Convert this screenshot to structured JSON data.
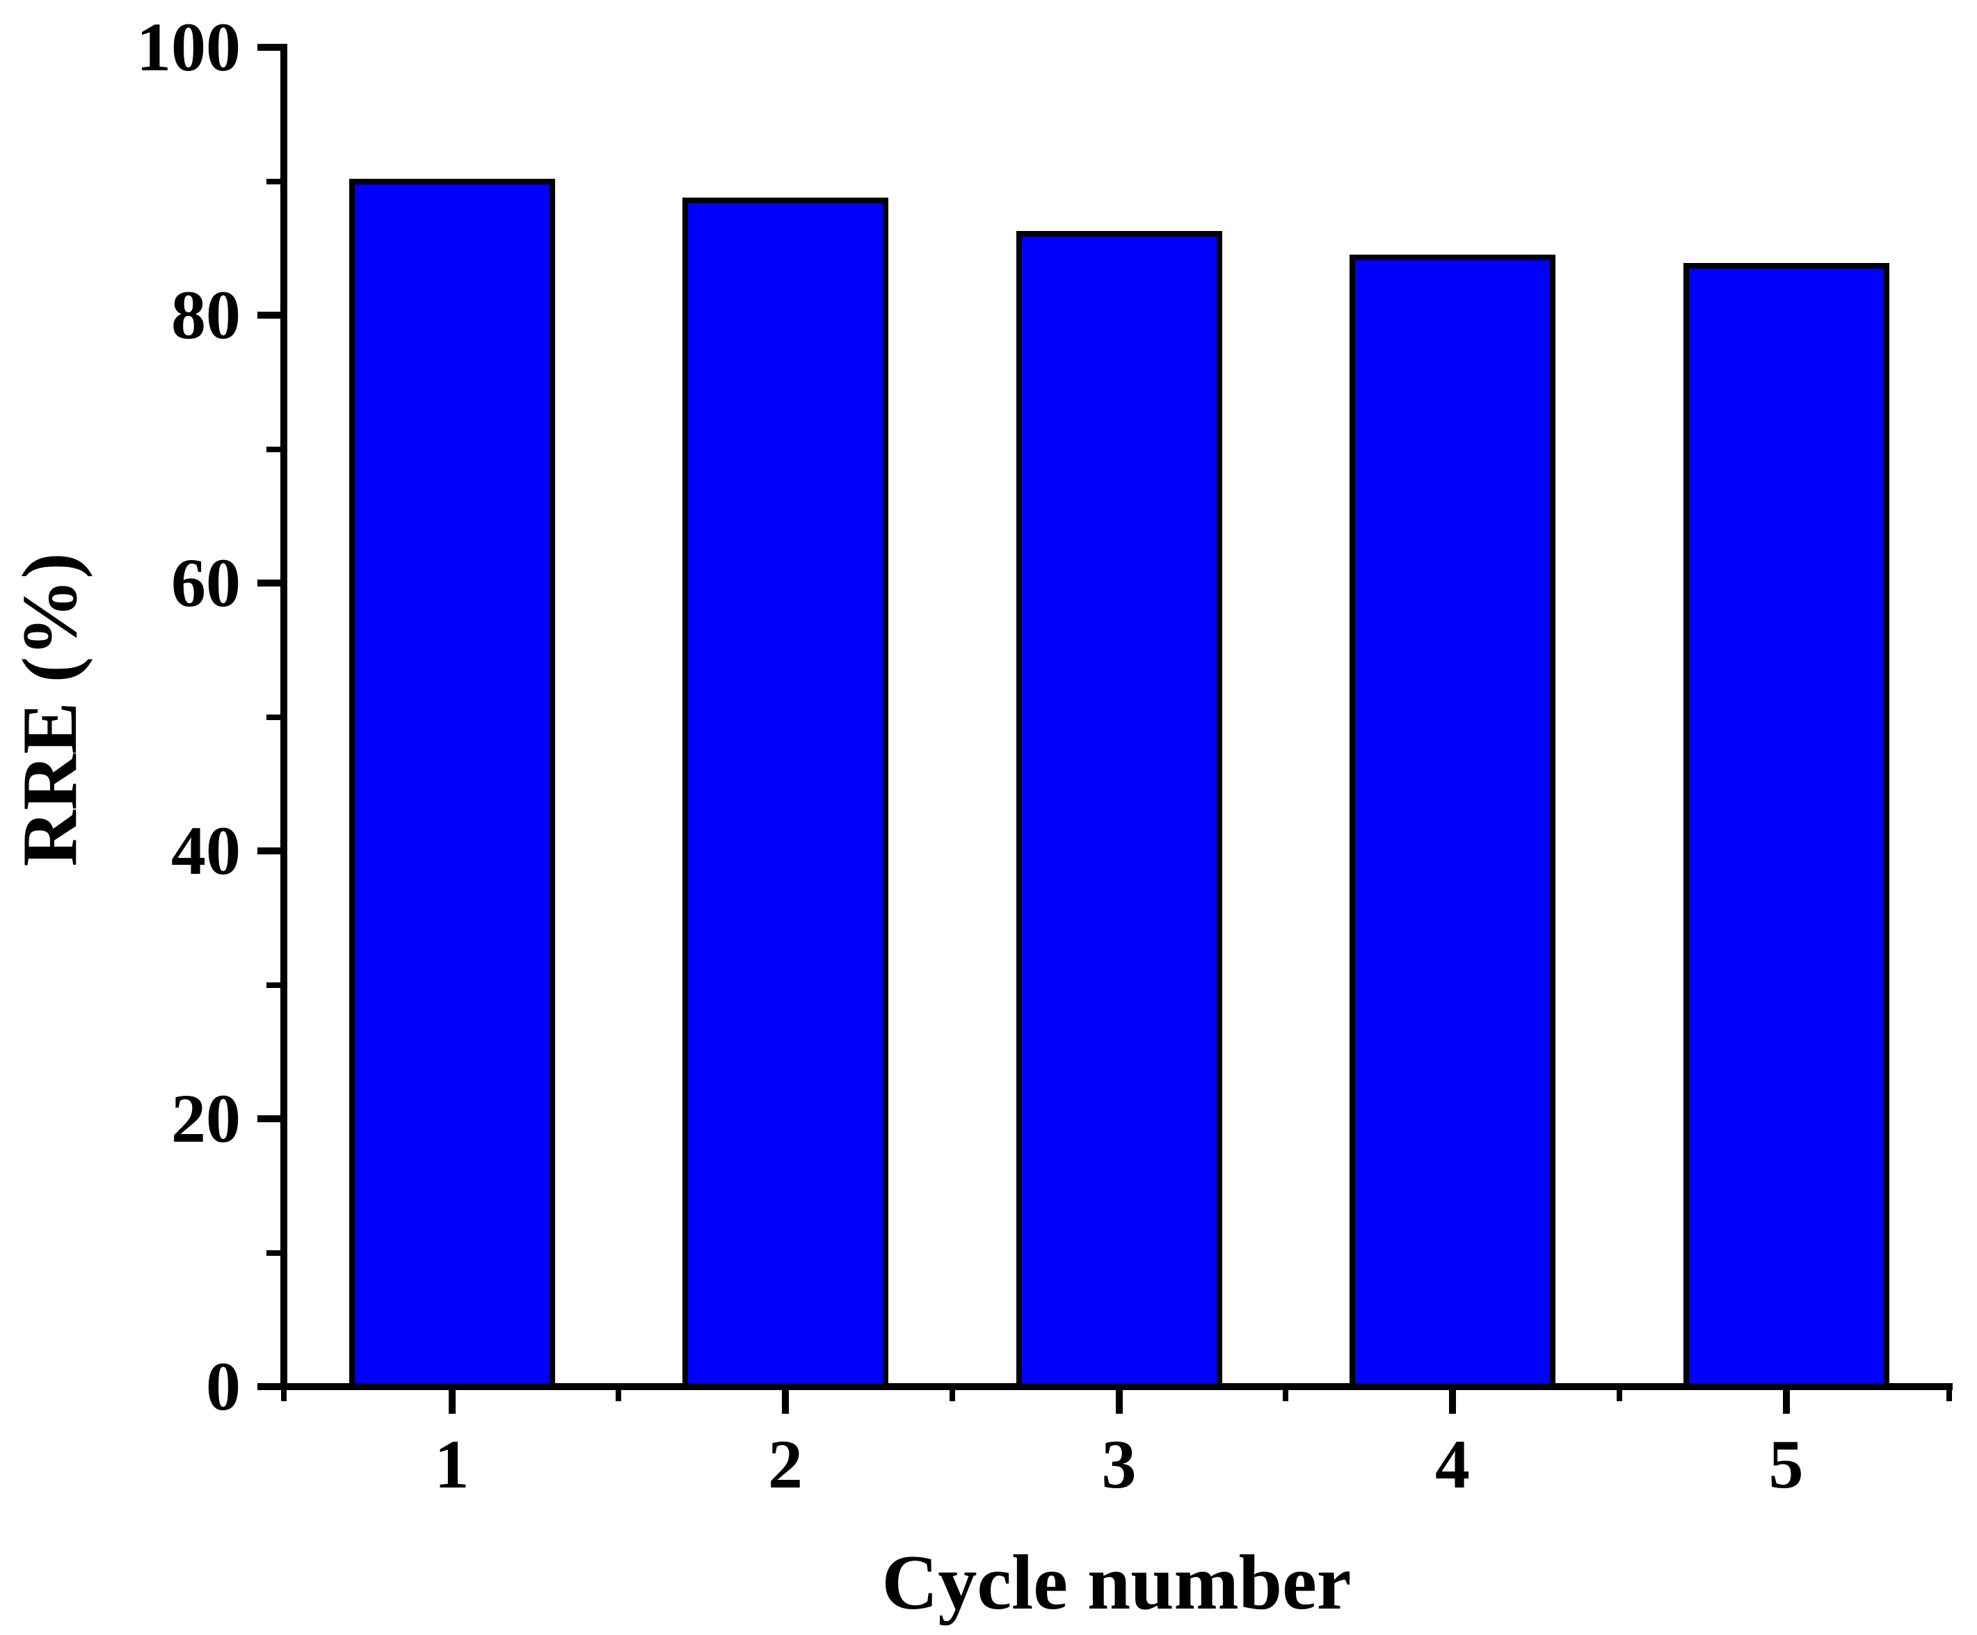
{
  "chart_data": {
    "type": "bar",
    "title": "",
    "categories": [
      "1",
      "2",
      "3",
      "4",
      "5"
    ],
    "values": [
      90.2,
      88.8,
      86.3,
      84.5,
      83.9
    ],
    "series_name": "RRE",
    "xlabel": "Cycle number",
    "ylabel": "RRE (%)",
    "ylim": [
      0,
      100
    ],
    "y_major_ticks": [
      0,
      20,
      40,
      60,
      80,
      100
    ],
    "y_minor_ticks": [
      10,
      30,
      50,
      70,
      90
    ],
    "x_minor_ticks_between_categories": true,
    "grid": false,
    "legend": false,
    "bar_fill_color": "#0000FF",
    "bar_border_color": "#000000",
    "axis_color": "#000000",
    "text_color": "#000000",
    "background_color": "#FFFFFF"
  }
}
